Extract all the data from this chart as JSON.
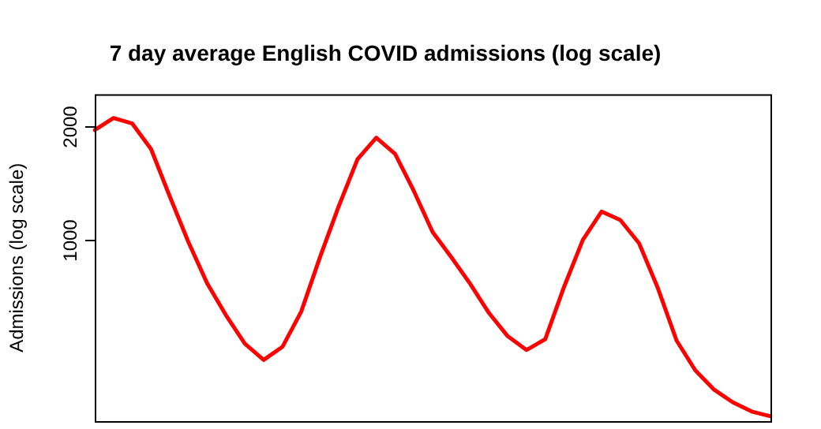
{
  "chart_data": {
    "type": "line",
    "title": "7 day average English COVID admissions (log scale)",
    "ylabel": "Admissions (log scale)",
    "categories": [
      null,
      null,
      null,
      null,
      null,
      null,
      null,
      null,
      null,
      null,
      null,
      null,
      null,
      null,
      null,
      null,
      null,
      null,
      null,
      null,
      null,
      null,
      null,
      null,
      null,
      null,
      null,
      null,
      null,
      null,
      null,
      null,
      null,
      null,
      null,
      null,
      null
    ],
    "series": [
      {
        "color": "#ff0000",
        "values": [
          1960,
          2110,
          2040,
          1745,
          1305,
          985,
          765,
          630,
          530,
          480,
          520,
          645,
          900,
          1230,
          1640,
          1870,
          1695,
          1350,
          1050,
          900,
          765,
          640,
          555,
          510,
          545,
          750,
          1000,
          1190,
          1130,
          980,
          745,
          540,
          450,
          400,
          370,
          350,
          340
        ]
      }
    ],
    "log": true,
    "ylim": [
      330,
      2440
    ],
    "yticks": [
      1000,
      2000
    ],
    "marker": "none",
    "line_style": "solid",
    "legend": false
  }
}
